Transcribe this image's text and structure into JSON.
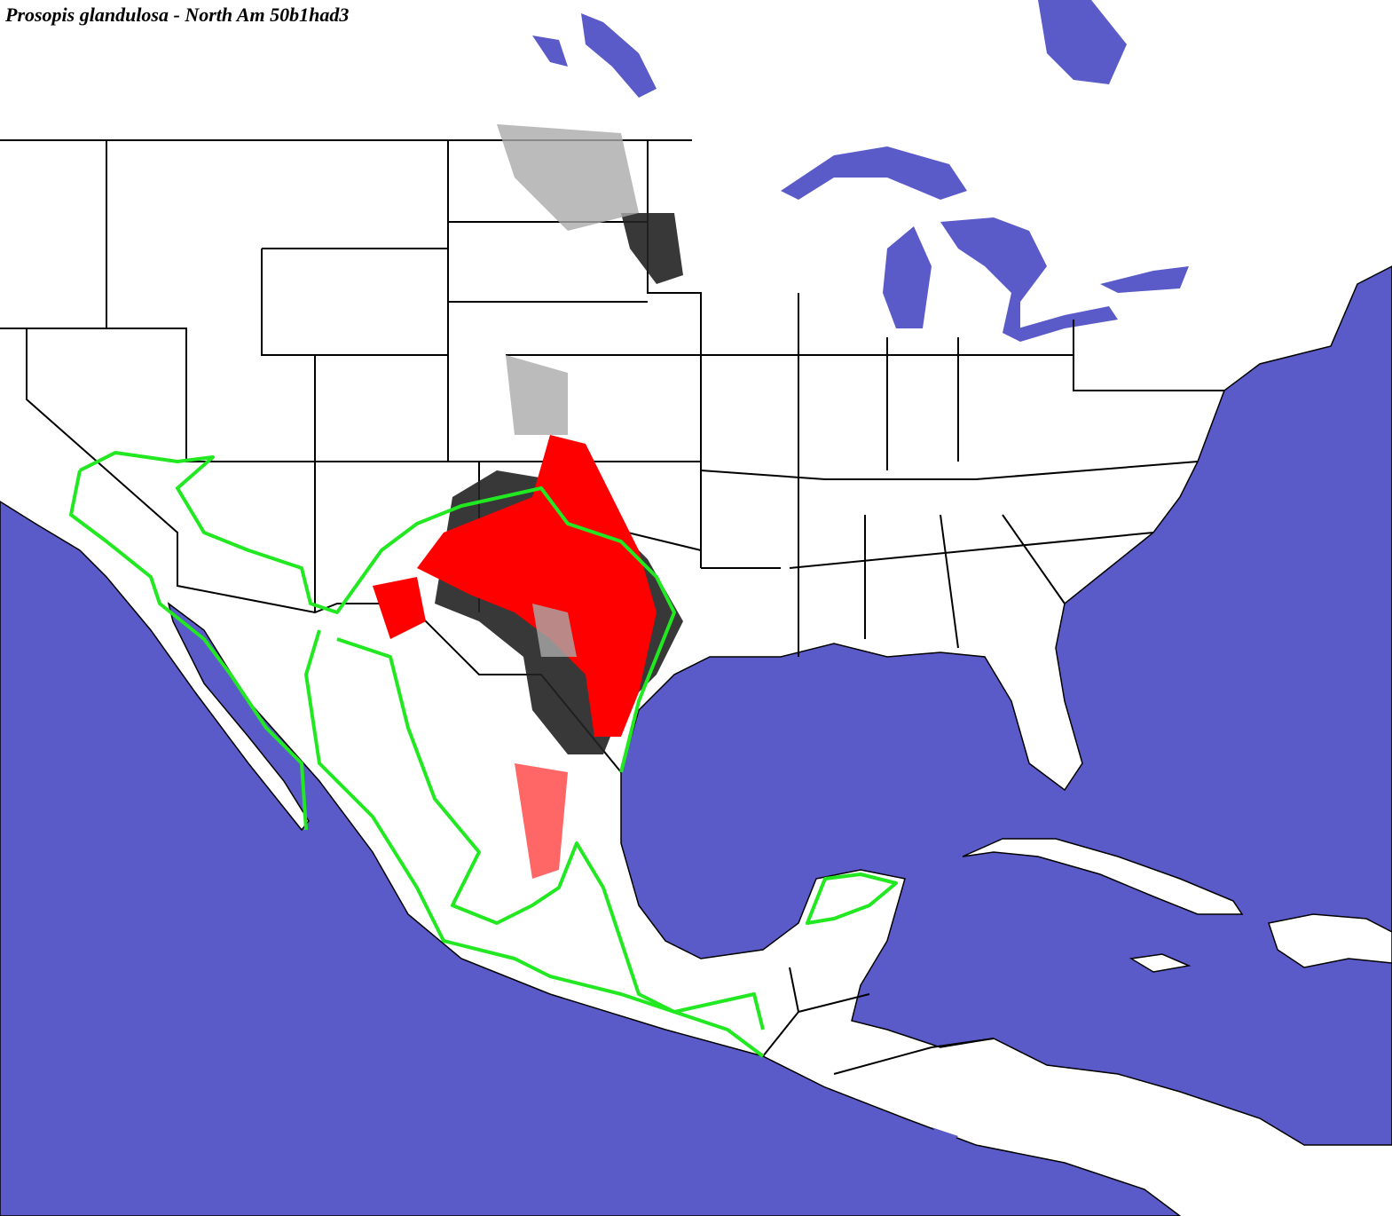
{
  "header": {
    "title": "Prosopis glandulosa - North Am 50b1had3"
  }
}
